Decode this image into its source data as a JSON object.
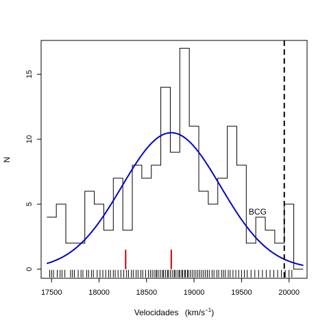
{
  "chart_data": {
    "type": "histogram",
    "xlabel": "Velocidades",
    "xlabel_unit": "(km/s",
    "xlabel_exp": "−1",
    "xlabel_close": ")",
    "ylabel": "N",
    "xlim": [
      17390,
      20190
    ],
    "ylim": [
      -0.7,
      17.6
    ],
    "x_ticks": [
      17500,
      18000,
      18500,
      19000,
      19500,
      20000
    ],
    "x_tick_labels": [
      "17500",
      "18000",
      "18500",
      "19000",
      "19500",
      "20000"
    ],
    "y_ticks": [
      0,
      5,
      10,
      15
    ],
    "y_tick_labels": [
      "0",
      "5",
      "10",
      "15"
    ],
    "histogram": {
      "bin_edges": [
        17450,
        17550,
        17650,
        17750,
        17850,
        17950,
        18050,
        18150,
        18250,
        18350,
        18450,
        18550,
        18650,
        18750,
        18850,
        18950,
        19050,
        19150,
        19250,
        19350,
        19450,
        19550,
        19650,
        19750,
        19850,
        19950,
        20050,
        20150
      ],
      "counts": [
        4,
        5,
        2,
        2,
        6,
        5,
        3,
        7,
        3,
        8,
        7,
        8,
        14,
        9,
        17,
        11,
        6,
        5,
        7,
        11,
        8,
        2,
        4,
        3,
        2,
        5,
        0
      ],
      "color": "#000000"
    },
    "gaussian_fit": {
      "mean": 18760,
      "sd": 520,
      "peak": 10.5,
      "x_range": [
        17450,
        20150
      ],
      "color": "#0000cc"
    },
    "subgroup_markers": {
      "x": [
        18280,
        18760
      ],
      "height": 1.5,
      "color": "#cc0000"
    },
    "vertical_line": {
      "x": 19950,
      "style": "dashed",
      "color": "#000000"
    },
    "annotation": {
      "text": "BCG",
      "x": 19670,
      "y": 4.2
    },
    "rug": [
      17480,
      17500,
      17520,
      17560,
      17590,
      17610,
      17640,
      17700,
      17720,
      17740,
      17780,
      17810,
      17830,
      17870,
      17890,
      17920,
      17940,
      17980,
      18010,
      18040,
      18070,
      18100,
      18120,
      18150,
      18170,
      18200,
      18230,
      18260,
      18290,
      18310,
      18340,
      18360,
      18390,
      18410,
      18440,
      18460,
      18490,
      18520,
      18540,
      18560,
      18580,
      18600,
      18610,
      18630,
      18650,
      18670,
      18680,
      18700,
      18720,
      18730,
      18750,
      18770,
      18790,
      18800,
      18820,
      18840,
      18850,
      18870,
      18880,
      18900,
      18910,
      18930,
      18940,
      18960,
      18980,
      19000,
      19020,
      19040,
      19060,
      19080,
      19100,
      19120,
      19140,
      19160,
      19190,
      19210,
      19240,
      19260,
      19290,
      19310,
      19330,
      19360,
      19380,
      19410,
      19440,
      19470,
      19500,
      19530,
      19560,
      19600,
      19640,
      19680,
      19720,
      19760,
      19800,
      19840,
      19880,
      19920,
      19960,
      20000,
      20030
    ]
  }
}
